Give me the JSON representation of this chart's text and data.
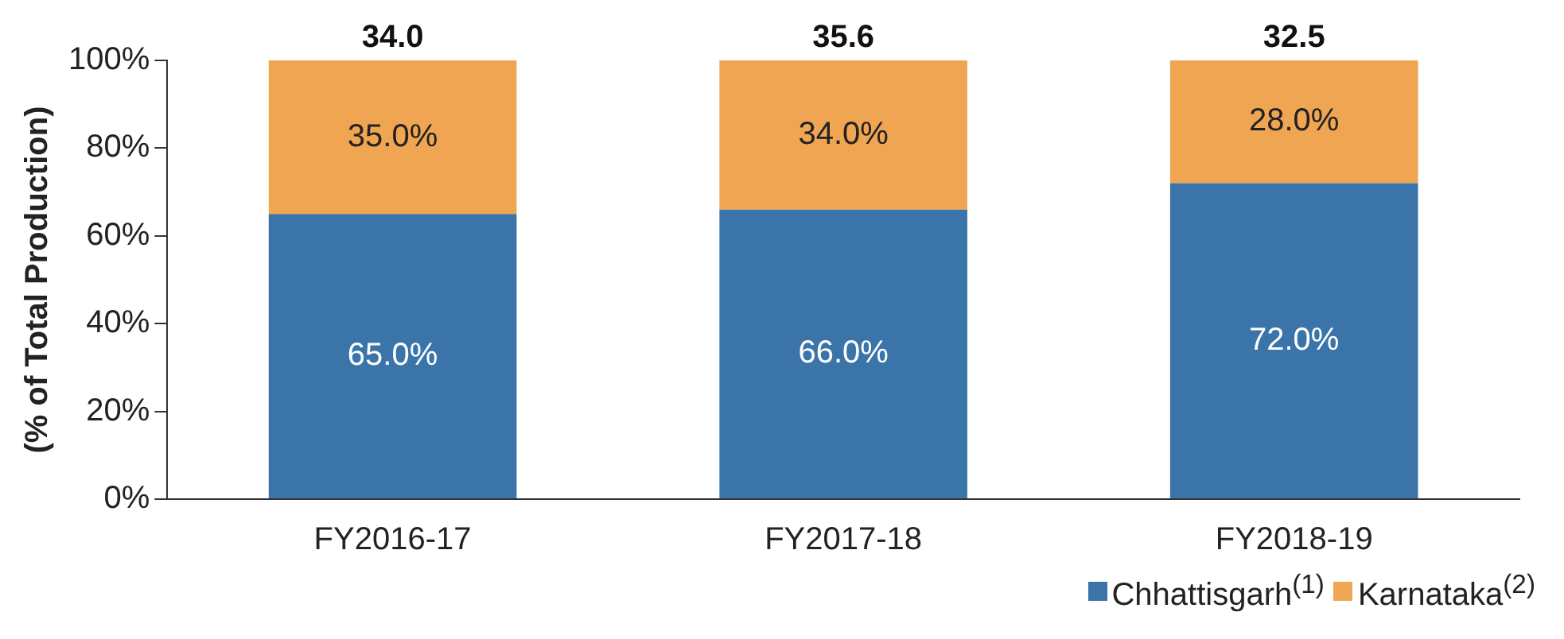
{
  "chart_data": {
    "type": "bar",
    "stacked": true,
    "ylabel": "(% of Total Production)",
    "categories": [
      "FY2016-17",
      "FY2017-18",
      "FY2018-19"
    ],
    "series": [
      {
        "name": "Chhattisgarh$^{(1)}$",
        "color": "#3a74a8",
        "values": [
          65,
          66,
          72
        ],
        "value_labels": [
          "65.0%",
          "66.0%",
          "72.0%"
        ]
      },
      {
        "name": "Karnataka$^{(2)}$",
        "color": "#f0a552",
        "values": [
          35,
          34,
          28
        ],
        "value_labels": [
          "35.0%",
          "34.0%",
          "28.0%"
        ]
      }
    ],
    "annotations": [
      {
        "text": "34.0",
        "x": "FY2016-17",
        "y": 100
      },
      {
        "text": "35.6",
        "x": "FY2017-18",
        "y": 100
      },
      {
        "text": "32.5",
        "x": "FY2018-19",
        "y": 100
      }
    ],
    "ylim": [
      0,
      100
    ],
    "yticks": [
      {
        "value": 0,
        "label": "0%"
      },
      {
        "value": 20,
        "label": "20%"
      },
      {
        "value": 40,
        "label": "40%"
      },
      {
        "value": 60,
        "label": "60%"
      },
      {
        "value": 80,
        "label": "80%"
      },
      {
        "value": 100,
        "label": "100%"
      }
    ],
    "grid": false,
    "legend": "bottom right"
  }
}
